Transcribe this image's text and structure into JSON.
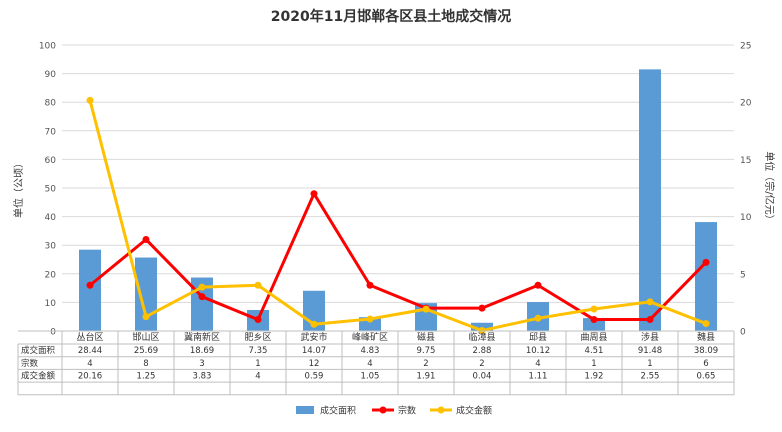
{
  "chart_data": {
    "type": "bar",
    "title": "2020年11月邯郸各区县土地成交情况",
    "categories": [
      "丛台区",
      "邯山区",
      "冀南新区",
      "肥乡区",
      "武安市",
      "峰峰矿区",
      "磁县",
      "临漳县",
      "邱县",
      "曲周县",
      "涉县",
      "魏县"
    ],
    "left_axis": {
      "label": "单位（公顷）",
      "ylim": [
        0,
        100
      ],
      "ticks": [
        "0",
        "10",
        "20",
        "30",
        "40",
        "50",
        "60",
        "70",
        "80",
        "90",
        "100"
      ]
    },
    "right_axis": {
      "label": "单位（宗/亿元）",
      "ylim": [
        0,
        25
      ],
      "ticks": [
        "0",
        "5",
        "10",
        "15",
        "20",
        "25"
      ]
    },
    "grid": true,
    "legend_position": "bottom",
    "series": [
      {
        "name": "成交面积",
        "type": "bar",
        "axis": "left",
        "color": "#5b9bd5",
        "values": [
          28.44,
          25.69,
          18.69,
          7.35,
          14.07,
          4.83,
          9.75,
          2.88,
          10.12,
          4.51,
          91.48,
          38.09
        ]
      },
      {
        "name": "宗数",
        "type": "line",
        "axis": "right",
        "color": "#ff0000",
        "values": [
          4,
          8,
          3,
          1,
          12,
          4,
          2,
          2,
          4,
          1,
          1,
          6
        ]
      },
      {
        "name": "成交金额",
        "type": "line",
        "axis": "right",
        "color": "#ffc000",
        "values": [
          20.16,
          1.25,
          3.83,
          4,
          0.59,
          1.05,
          1.91,
          0.04,
          1.11,
          1.92,
          2.55,
          0.65
        ]
      }
    ],
    "table_rows": [
      {
        "label": "成交面积",
        "cells": [
          "28.44",
          "25.69",
          "18.69",
          "7.35",
          "14.07",
          "4.83",
          "9.75",
          "2.88",
          "10.12",
          "4.51",
          "91.48",
          "38.09"
        ]
      },
      {
        "label": "宗数",
        "cells": [
          "4",
          "8",
          "3",
          "1",
          "12",
          "4",
          "2",
          "2",
          "4",
          "1",
          "1",
          "6"
        ]
      },
      {
        "label": "成交金额",
        "cells": [
          "20.16",
          "1.25",
          "3.83",
          "4",
          "0.59",
          "1.05",
          "1.91",
          "0.04",
          "1.11",
          "1.92",
          "2.55",
          "0.65"
        ]
      }
    ]
  }
}
